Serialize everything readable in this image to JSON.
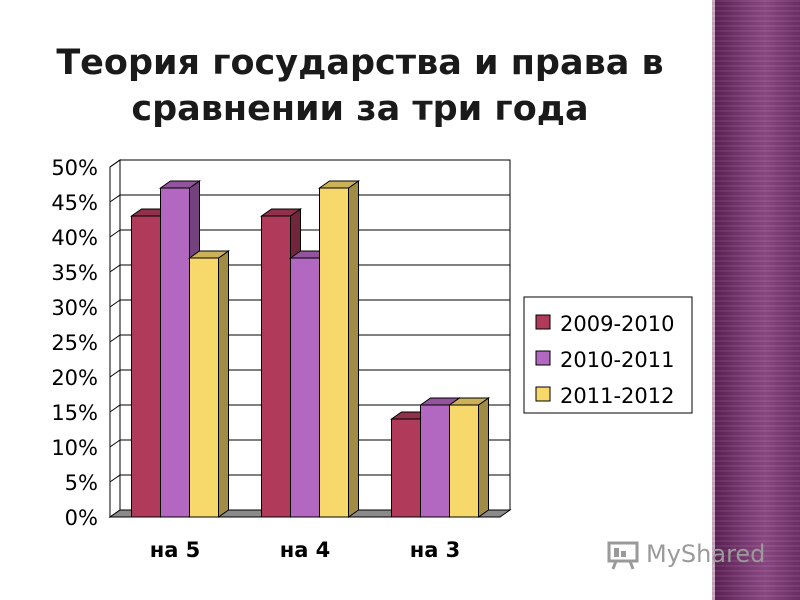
{
  "title": {
    "line1": "Теория государства и права в",
    "line2": "сравнении за три года"
  },
  "chart_data": {
    "type": "bar",
    "title": "Теория государства и права в сравнении за три года",
    "categories": [
      "на 5",
      "на 4",
      "на 3"
    ],
    "series": [
      {
        "name": "2009-2010",
        "values": [
          43,
          43,
          14
        ],
        "color": "#b03a5a"
      },
      {
        "name": "2010-2011",
        "values": [
          47,
          37,
          16
        ],
        "color": "#b267c0"
      },
      {
        "name": "2011-2012",
        "values": [
          37,
          47,
          16
        ],
        "color": "#f7d86a"
      }
    ],
    "yticks": [
      "0%",
      "5%",
      "10%",
      "15%",
      "20%",
      "25%",
      "30%",
      "35%",
      "40%",
      "45%",
      "50%"
    ],
    "ylim": [
      0,
      50
    ],
    "grid": true,
    "legend": "right",
    "style": "3d-bar"
  },
  "watermark": {
    "text": "MyShared"
  },
  "colors": {
    "band": "#7a3a72"
  }
}
